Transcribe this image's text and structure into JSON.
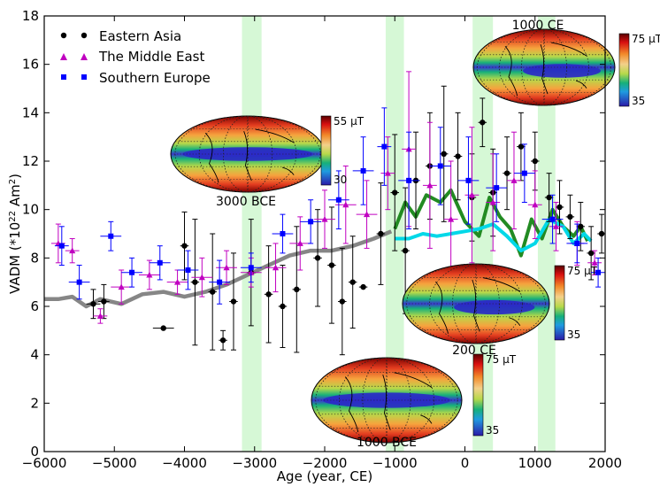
{
  "chart_data": {
    "type": "scatter",
    "xlabel": "Age (year, CE)",
    "ylabel_main": "VADM (*10",
    "ylabel_sup": "22",
    "ylabel_unit": " Am",
    "ylabel_sup2": "2",
    "ylabel_close": ")",
    "xlim": [
      -6000,
      2000
    ],
    "ylim": [
      0,
      18
    ],
    "x_ticks": [
      -6000,
      -5000,
      -4000,
      -3000,
      -2000,
      -1000,
      0,
      1000,
      2000
    ],
    "y_ticks": [
      0,
      2,
      4,
      6,
      8,
      10,
      12,
      14,
      16,
      18
    ],
    "x_tick_labels": [
      "−6000",
      "−5000",
      "−4000",
      "−3000",
      "−2000",
      "−1000",
      "0",
      "1000",
      "2000"
    ],
    "y_tick_labels": [
      "0",
      "2",
      "4",
      "6",
      "8",
      "10",
      "12",
      "14",
      "16",
      "18"
    ],
    "legend_position": "top-left",
    "highlight_bands": [
      {
        "x0": -3180,
        "x1": -2900
      },
      {
        "x0": -1130,
        "x1": -870
      },
      {
        "x0": 110,
        "x1": 400
      },
      {
        "x0": 1040,
        "x1": 1290
      }
    ],
    "series": [
      {
        "name": "Eastern Asia",
        "marker": "circle",
        "color": "#000000",
        "points": [
          {
            "x": -5300,
            "y": 6.1,
            "ey": 0.6,
            "ex": 100
          },
          {
            "x": -5150,
            "y": 6.2,
            "ey": 0.7,
            "ex": 80
          },
          {
            "x": -4300,
            "y": 5.1,
            "ey": 0.0,
            "ex": 150
          },
          {
            "x": -4000,
            "y": 8.5,
            "ey": 1.4,
            "ex": 60
          },
          {
            "x": -3850,
            "y": 7.0,
            "ey": 2.6,
            "ex": 60
          },
          {
            "x": -3600,
            "y": 6.6,
            "ey": 2.4,
            "ex": 60
          },
          {
            "x": -3450,
            "y": 4.6,
            "ey": 0.4,
            "ex": 60
          },
          {
            "x": -3300,
            "y": 6.2,
            "ey": 2.0,
            "ex": 60
          },
          {
            "x": -3050,
            "y": 7.4,
            "ey": 2.2,
            "ex": 60
          },
          {
            "x": -2800,
            "y": 6.5,
            "ey": 2.0,
            "ex": 60
          },
          {
            "x": -2600,
            "y": 6.0,
            "ey": 1.7,
            "ex": 60
          },
          {
            "x": -2400,
            "y": 6.7,
            "ey": 2.6,
            "ex": 60
          },
          {
            "x": -2100,
            "y": 8.0,
            "ey": 2.0,
            "ex": 60
          },
          {
            "x": -1900,
            "y": 7.7,
            "ey": 2.4,
            "ex": 60
          },
          {
            "x": -1750,
            "y": 6.2,
            "ey": 2.2,
            "ex": 60
          },
          {
            "x": -1600,
            "y": 7.0,
            "ey": 1.9,
            "ex": 60
          },
          {
            "x": -1450,
            "y": 6.8,
            "ey": 0.0,
            "ex": 60
          },
          {
            "x": -1200,
            "y": 9.0,
            "ey": 2.1,
            "ex": 60
          },
          {
            "x": -1000,
            "y": 10.7,
            "ey": 2.4,
            "ex": 60
          },
          {
            "x": -850,
            "y": 8.3,
            "ey": 2.6,
            "ex": 60
          },
          {
            "x": -700,
            "y": 11.2,
            "ey": 2.0,
            "ex": 60
          },
          {
            "x": -500,
            "y": 11.8,
            "ey": 2.2,
            "ex": 60
          },
          {
            "x": -300,
            "y": 12.3,
            "ey": 2.8,
            "ex": 60
          },
          {
            "x": -100,
            "y": 12.2,
            "ey": 1.8,
            "ex": 60
          },
          {
            "x": 100,
            "y": 10.5,
            "ey": 1.8,
            "ex": 60
          },
          {
            "x": 250,
            "y": 13.6,
            "ey": 1.0,
            "ex": 60
          },
          {
            "x": 400,
            "y": 10.7,
            "ey": 1.8,
            "ex": 60
          },
          {
            "x": 600,
            "y": 11.5,
            "ey": 1.5,
            "ex": 60
          },
          {
            "x": 800,
            "y": 12.6,
            "ey": 1.4,
            "ex": 60
          },
          {
            "x": 1000,
            "y": 12.0,
            "ey": 1.2,
            "ex": 60
          },
          {
            "x": 1200,
            "y": 10.5,
            "ey": 1.0,
            "ex": 60
          },
          {
            "x": 1350,
            "y": 10.1,
            "ey": 1.1,
            "ex": 60
          },
          {
            "x": 1500,
            "y": 9.7,
            "ey": 0.9,
            "ex": 60
          },
          {
            "x": 1650,
            "y": 9.3,
            "ey": 1.0,
            "ex": 60
          },
          {
            "x": 1800,
            "y": 8.2,
            "ey": 1.1,
            "ex": 60
          },
          {
            "x": 1950,
            "y": 9.0,
            "ey": 0.8,
            "ex": 60
          }
        ]
      },
      {
        "name": "The Middle East",
        "marker": "triangle",
        "color": "#c000c0",
        "points": [
          {
            "x": -5800,
            "y": 8.6,
            "ey": 0.8,
            "ex": 100
          },
          {
            "x": -5600,
            "y": 8.3,
            "ey": 0.5,
            "ex": 100
          },
          {
            "x": -5200,
            "y": 5.6,
            "ey": 0.3,
            "ex": 100
          },
          {
            "x": -4900,
            "y": 6.8,
            "ey": 0.7,
            "ex": 150
          },
          {
            "x": -4500,
            "y": 7.3,
            "ey": 0.6,
            "ex": 150
          },
          {
            "x": -4100,
            "y": 7.0,
            "ey": 0.5,
            "ex": 150
          },
          {
            "x": -3750,
            "y": 7.2,
            "ey": 0.8,
            "ex": 150
          },
          {
            "x": -3400,
            "y": 7.6,
            "ey": 0.7,
            "ex": 150
          },
          {
            "x": -3050,
            "y": 7.4,
            "ey": 0.6,
            "ex": 150
          },
          {
            "x": -2700,
            "y": 7.6,
            "ey": 1.0,
            "ex": 150
          },
          {
            "x": -2350,
            "y": 8.6,
            "ey": 1.1,
            "ex": 150
          },
          {
            "x": -2000,
            "y": 9.6,
            "ey": 1.2,
            "ex": 150
          },
          {
            "x": -1700,
            "y": 10.2,
            "ey": 1.6,
            "ex": 150
          },
          {
            "x": -1400,
            "y": 9.8,
            "ey": 1.4,
            "ex": 150
          },
          {
            "x": -1100,
            "y": 11.5,
            "ey": 1.5,
            "ex": 100
          },
          {
            "x": -800,
            "y": 12.5,
            "ey": 3.2,
            "ex": 100
          },
          {
            "x": -500,
            "y": 11.0,
            "ey": 2.6,
            "ex": 100
          },
          {
            "x": -200,
            "y": 9.6,
            "ey": 2.4,
            "ex": 100
          },
          {
            "x": 100,
            "y": 10.6,
            "ey": 2.8,
            "ex": 100
          },
          {
            "x": 400,
            "y": 10.3,
            "ey": 2.0,
            "ex": 100
          },
          {
            "x": 700,
            "y": 11.2,
            "ey": 2.0,
            "ex": 100
          },
          {
            "x": 1000,
            "y": 10.2,
            "ey": 1.4,
            "ex": 100
          },
          {
            "x": 1300,
            "y": 9.3,
            "ey": 1.0,
            "ex": 100
          },
          {
            "x": 1600,
            "y": 8.6,
            "ey": 0.9,
            "ex": 100
          },
          {
            "x": 1850,
            "y": 7.8,
            "ey": 0.5,
            "ex": 100
          }
        ]
      },
      {
        "name": "Southern Europe",
        "marker": "square",
        "color": "#0000ff",
        "points": [
          {
            "x": -5750,
            "y": 8.5,
            "ey": 0.8,
            "ex": 100
          },
          {
            "x": -5500,
            "y": 7.0,
            "ey": 0.7,
            "ex": 150
          },
          {
            "x": -5050,
            "y": 8.9,
            "ey": 0.6,
            "ex": 150
          },
          {
            "x": -4750,
            "y": 7.4,
            "ey": 0.6,
            "ex": 150
          },
          {
            "x": -4350,
            "y": 7.8,
            "ey": 0.7,
            "ex": 150
          },
          {
            "x": -3950,
            "y": 7.5,
            "ey": 0.8,
            "ex": 150
          },
          {
            "x": -3500,
            "y": 7.0,
            "ey": 0.9,
            "ex": 150
          },
          {
            "x": -3050,
            "y": 7.6,
            "ey": 0.6,
            "ex": 150
          },
          {
            "x": -2600,
            "y": 9.0,
            "ey": 0.8,
            "ex": 150
          },
          {
            "x": -2200,
            "y": 9.5,
            "ey": 0.9,
            "ex": 150
          },
          {
            "x": -1800,
            "y": 10.4,
            "ey": 1.2,
            "ex": 150
          },
          {
            "x": -1450,
            "y": 11.6,
            "ey": 1.4,
            "ex": 150
          },
          {
            "x": -1150,
            "y": 12.6,
            "ey": 1.6,
            "ex": 100
          },
          {
            "x": -800,
            "y": 11.2,
            "ey": 2.0,
            "ex": 150
          },
          {
            "x": -350,
            "y": 11.8,
            "ey": 1.6,
            "ex": 150
          },
          {
            "x": 50,
            "y": 11.2,
            "ey": 1.8,
            "ex": 150
          },
          {
            "x": 450,
            "y": 10.9,
            "ey": 1.4,
            "ex": 150
          },
          {
            "x": 850,
            "y": 11.5,
            "ey": 1.2,
            "ex": 150
          },
          {
            "x": 1250,
            "y": 9.6,
            "ey": 1.0,
            "ex": 150
          },
          {
            "x": 1600,
            "y": 8.6,
            "ey": 0.8,
            "ex": 150
          },
          {
            "x": 1900,
            "y": 7.4,
            "ey": 0.6,
            "ex": 100
          }
        ]
      },
      {
        "name": "",
        "marker": "line",
        "color": "#7f7f7f",
        "points": [
          {
            "x": -6000,
            "y": 6.3
          },
          {
            "x": -5800,
            "y": 6.3
          },
          {
            "x": -5600,
            "y": 6.4
          },
          {
            "x": -5400,
            "y": 6.0
          },
          {
            "x": -5200,
            "y": 6.3
          },
          {
            "x": -4900,
            "y": 6.1
          },
          {
            "x": -4600,
            "y": 6.5
          },
          {
            "x": -4300,
            "y": 6.6
          },
          {
            "x": -4000,
            "y": 6.4
          },
          {
            "x": -3700,
            "y": 6.6
          },
          {
            "x": -3400,
            "y": 6.9
          },
          {
            "x": -3100,
            "y": 7.3
          },
          {
            "x": -2800,
            "y": 7.7
          },
          {
            "x": -2500,
            "y": 8.1
          },
          {
            "x": -2200,
            "y": 8.3
          },
          {
            "x": -1900,
            "y": 8.3
          },
          {
            "x": -1600,
            "y": 8.5
          },
          {
            "x": -1300,
            "y": 8.8
          },
          {
            "x": -1050,
            "y": 9.1
          }
        ]
      },
      {
        "name": "",
        "marker": "line",
        "color": "#228b22",
        "points": [
          {
            "x": -1000,
            "y": 9.2
          },
          {
            "x": -850,
            "y": 10.3
          },
          {
            "x": -700,
            "y": 9.7
          },
          {
            "x": -550,
            "y": 10.6
          },
          {
            "x": -350,
            "y": 10.3
          },
          {
            "x": -200,
            "y": 10.8
          },
          {
            "x": 0,
            "y": 9.5
          },
          {
            "x": 200,
            "y": 8.9
          },
          {
            "x": 350,
            "y": 10.5
          },
          {
            "x": 500,
            "y": 9.7
          },
          {
            "x": 650,
            "y": 9.2
          },
          {
            "x": 800,
            "y": 8.1
          },
          {
            "x": 950,
            "y": 9.6
          },
          {
            "x": 1100,
            "y": 8.8
          },
          {
            "x": 1250,
            "y": 10.0
          },
          {
            "x": 1400,
            "y": 9.3
          },
          {
            "x": 1550,
            "y": 8.9
          },
          {
            "x": 1650,
            "y": 9.3
          },
          {
            "x": 1750,
            "y": 8.7
          }
        ]
      },
      {
        "name": "",
        "marker": "line",
        "color": "#00d8e8",
        "points": [
          {
            "x": -1000,
            "y": 8.8
          },
          {
            "x": -800,
            "y": 8.8
          },
          {
            "x": -600,
            "y": 9.0
          },
          {
            "x": -400,
            "y": 8.9
          },
          {
            "x": -200,
            "y": 9.0
          },
          {
            "x": 0,
            "y": 9.1
          },
          {
            "x": 200,
            "y": 9.2
          },
          {
            "x": 400,
            "y": 9.4
          },
          {
            "x": 600,
            "y": 8.9
          },
          {
            "x": 800,
            "y": 8.3
          },
          {
            "x": 1000,
            "y": 8.6
          },
          {
            "x": 1200,
            "y": 9.6
          },
          {
            "x": 1400,
            "y": 9.3
          },
          {
            "x": 1550,
            "y": 8.6
          },
          {
            "x": 1700,
            "y": 9.0
          },
          {
            "x": 1800,
            "y": 8.7
          }
        ]
      }
    ],
    "maps": [
      {
        "label": "3000 BCE",
        "scale_max": "55 µT",
        "scale_min": "30",
        "dip": "equator"
      },
      {
        "label": "1000 CE",
        "scale_max": "75 µT",
        "scale_min": "35",
        "dip": "right"
      },
      {
        "label": "200 CE",
        "scale_max": "75 µT",
        "scale_min": "35",
        "dip": "right"
      },
      {
        "label": "1000 BCE",
        "scale_max": "75 µT",
        "scale_min": "35",
        "dip": "equator"
      }
    ]
  }
}
